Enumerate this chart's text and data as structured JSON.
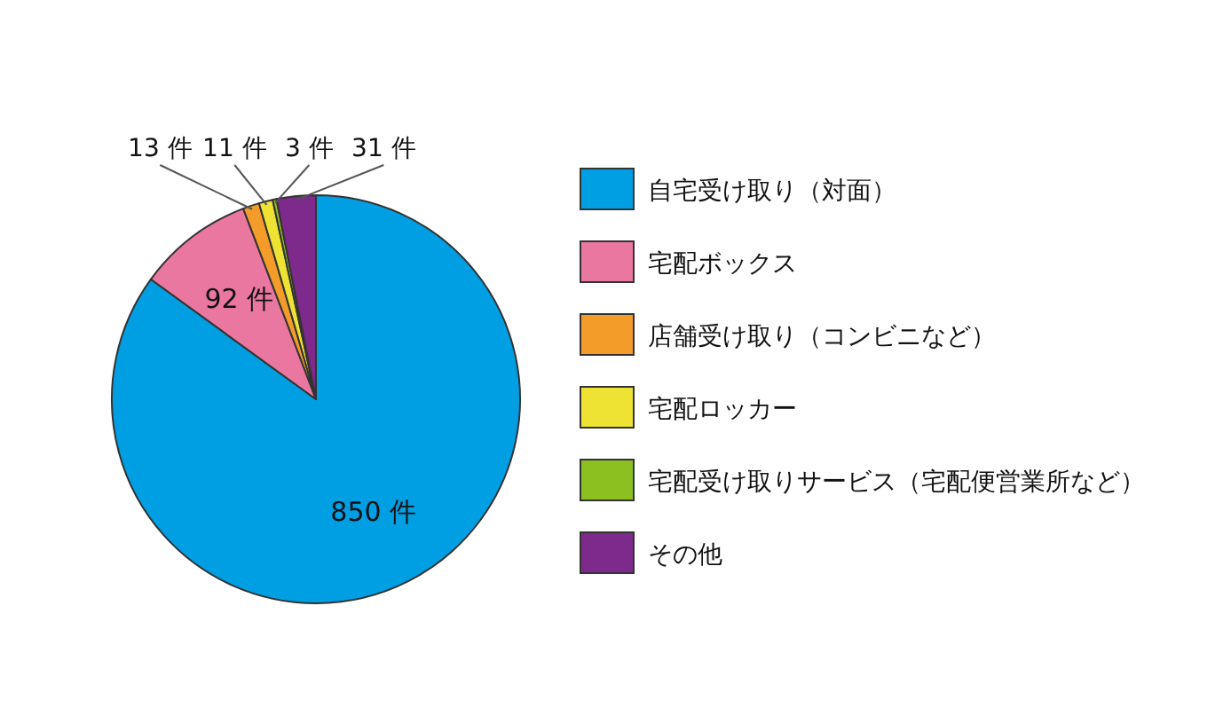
{
  "chart_data": {
    "type": "pie",
    "categories": [
      "自宅受け取り（対面）",
      "宅配ボックス",
      "店舗受け取り（コンビニなど）",
      "宅配ロッカー",
      "宅配受け取りサービス（宅配便営業所など）",
      "その他"
    ],
    "values": [
      850,
      92,
      13,
      11,
      3,
      31
    ],
    "colors": [
      "#009fe3",
      "#ea77a0",
      "#f39c2a",
      "#eee233",
      "#8cc021",
      "#7d2a8c"
    ],
    "value_labels": [
      "850 件",
      "92 件",
      "13 件",
      "11 件",
      "3 件",
      "31 件"
    ],
    "legend": "right"
  }
}
